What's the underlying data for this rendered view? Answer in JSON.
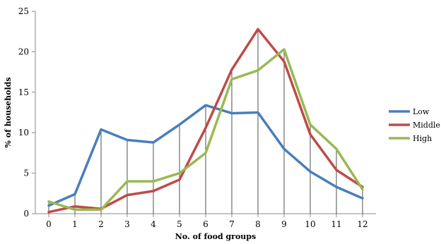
{
  "chart_data": {
    "type": "line",
    "title": "",
    "xlabel": "No. of food groups",
    "ylabel": "% of households",
    "x": [
      0,
      1,
      2,
      3,
      4,
      5,
      6,
      7,
      8,
      9,
      10,
      11,
      12
    ],
    "xlim": [
      0,
      12
    ],
    "ylim": [
      0,
      25
    ],
    "yticks": [
      0,
      5,
      10,
      15,
      20,
      25
    ],
    "grid": "vertical drop lines at each x",
    "legend_position": "right",
    "series": [
      {
        "name": "Low",
        "color": "#4a7ebb",
        "values": [
          1.0,
          2.4,
          10.4,
          9.1,
          8.8,
          11.0,
          13.4,
          12.4,
          12.5,
          8.0,
          5.2,
          3.3,
          1.9
        ]
      },
      {
        "name": "Middle",
        "color": "#be4b48",
        "values": [
          0.2,
          0.9,
          0.6,
          2.3,
          2.8,
          4.2,
          10.6,
          17.8,
          22.8,
          18.8,
          9.8,
          5.4,
          3.3
        ]
      },
      {
        "name": "High",
        "color": "#98b954",
        "values": [
          1.5,
          0.5,
          0.5,
          4.0,
          4.0,
          5.0,
          7.5,
          16.6,
          17.7,
          20.3,
          11.0,
          8.0,
          3.0
        ]
      }
    ]
  }
}
